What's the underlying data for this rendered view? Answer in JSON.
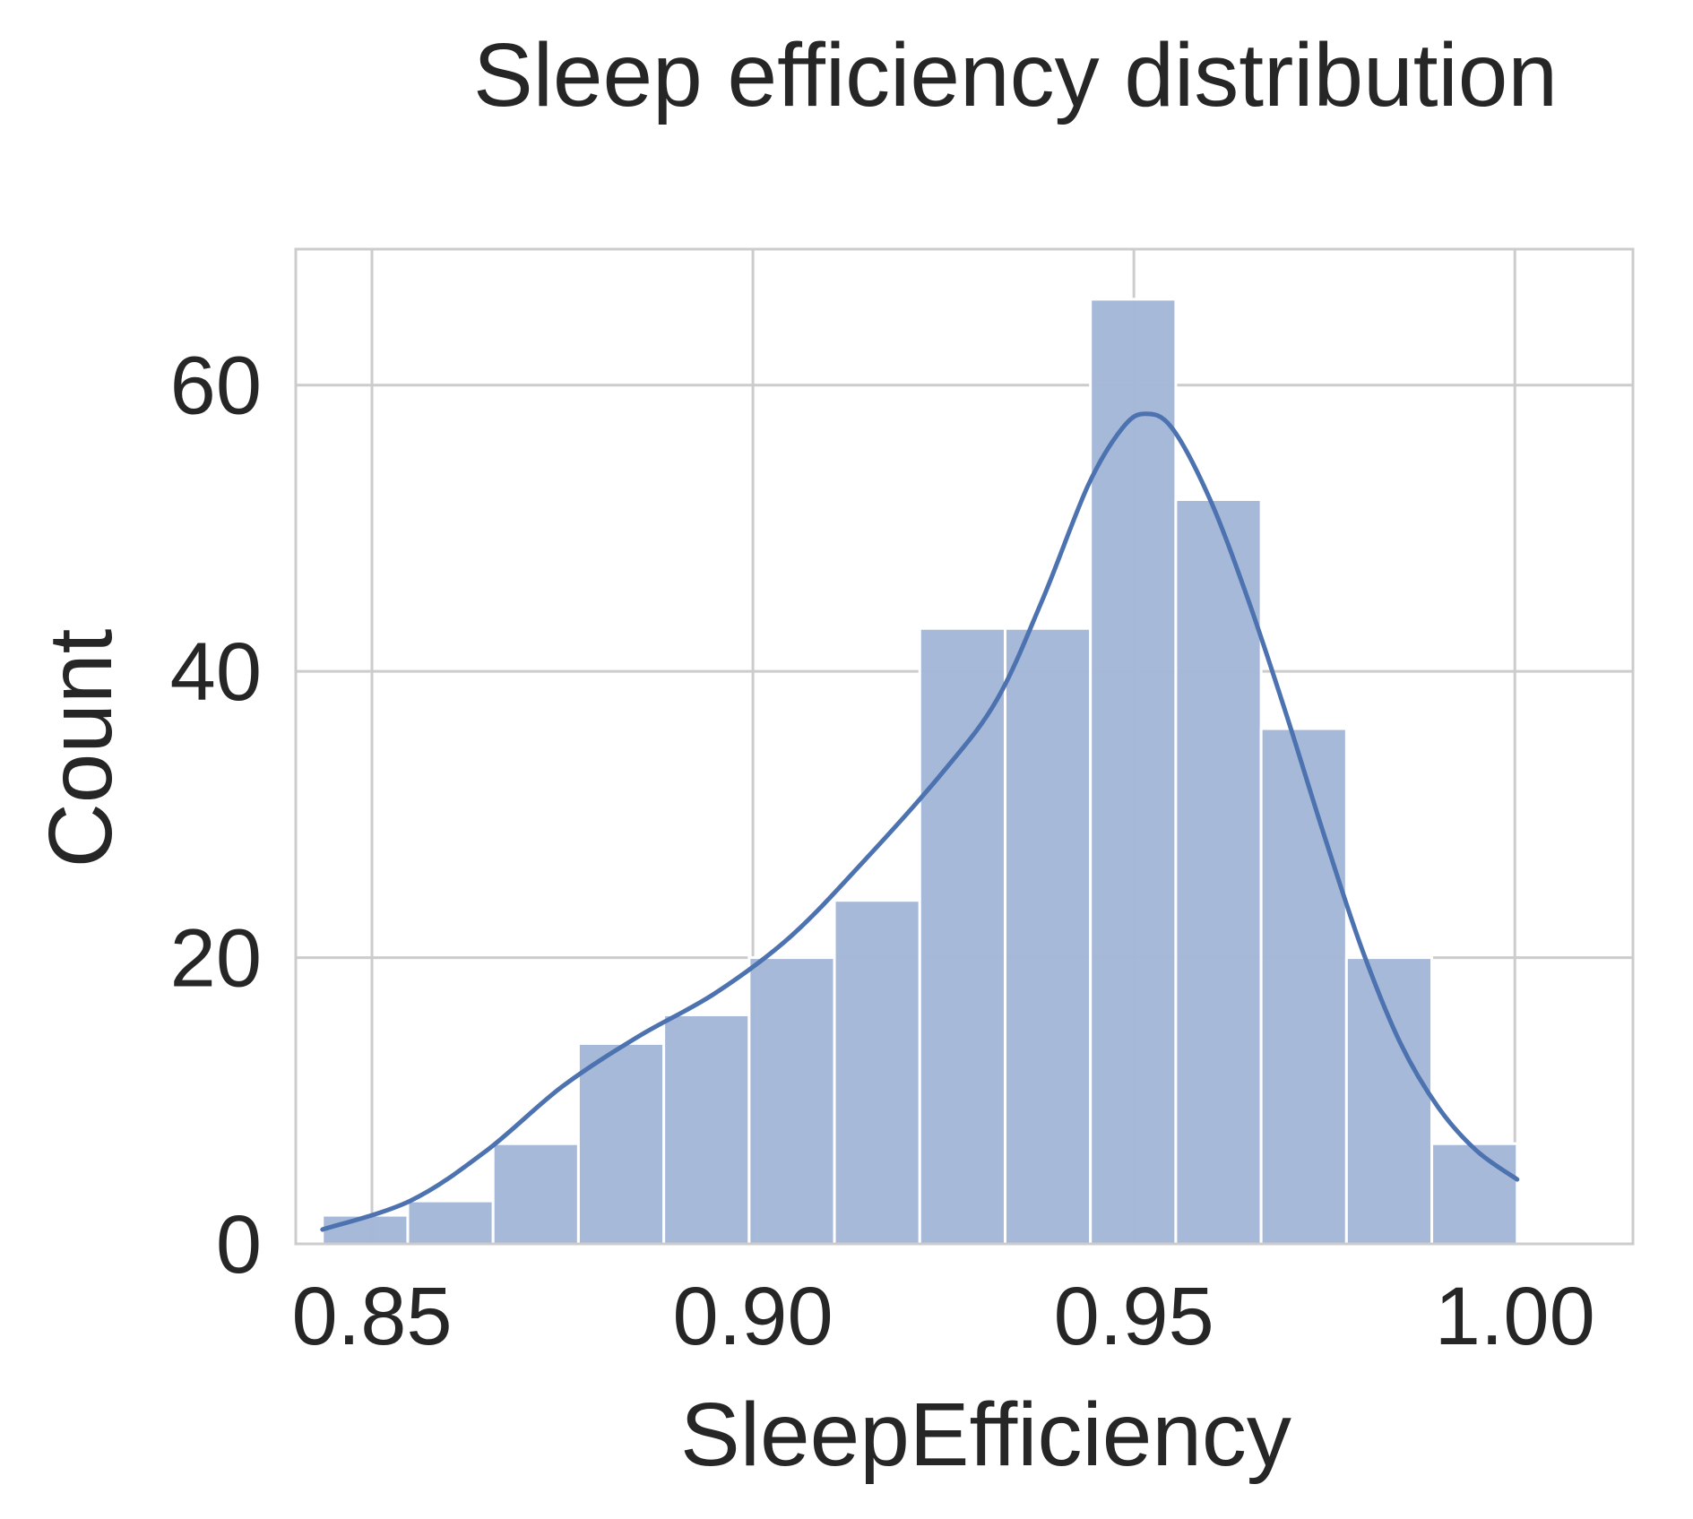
{
  "chart_data": {
    "type": "histogram",
    "title": "Sleep efficiency distribution",
    "xlabel": "SleepEfficiency",
    "ylabel": "Count",
    "xlim": [
      0.84,
      1.0155
    ],
    "ylim": [
      0,
      69.5
    ],
    "xticks": [
      0.85,
      0.9,
      0.95,
      1.0
    ],
    "xtick_labels": [
      "0.85",
      "0.90",
      "0.95",
      "1.00"
    ],
    "yticks": [
      0,
      20,
      40,
      60
    ],
    "ytick_labels": [
      "0",
      "20",
      "40",
      "60"
    ],
    "grid": true,
    "bin_edges": [
      0.8435,
      0.8547,
      0.8659,
      0.8771,
      0.8883,
      0.8995,
      0.9107,
      0.9219,
      0.9331,
      0.9443,
      0.9555,
      0.9667,
      0.9779,
      0.9891,
      1.0003
    ],
    "counts": [
      2,
      3,
      7,
      14,
      16,
      20,
      24,
      43,
      43,
      66,
      52,
      36,
      20,
      7
    ],
    "kde": {
      "x": [
        0.8435,
        0.855,
        0.865,
        0.875,
        0.885,
        0.895,
        0.905,
        0.915,
        0.925,
        0.932,
        0.938,
        0.944,
        0.9485,
        0.9515,
        0.955,
        0.96,
        0.965,
        0.97,
        0.975,
        0.98,
        0.985,
        0.99,
        0.995,
        1.0003
      ],
      "y": [
        1,
        3,
        6.5,
        11,
        14.5,
        17.5,
        21.5,
        27,
        33,
        38,
        45,
        53,
        57,
        58,
        57,
        52,
        45,
        37,
        28.5,
        20.5,
        14,
        9.5,
        6.5,
        4.5
      ]
    },
    "colors": {
      "bar_fill": "#a5b8d8",
      "line": "#4c72b0",
      "grid": "#cccccc",
      "spine": "#cccccc",
      "text": "#262626"
    }
  }
}
